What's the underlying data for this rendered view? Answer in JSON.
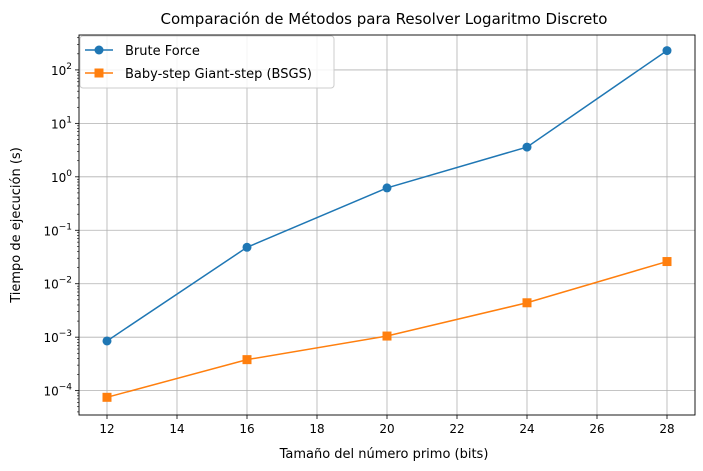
{
  "chart_data": {
    "type": "line",
    "title": "Comparación de Métodos para Resolver Logaritmo Discreto",
    "xlabel": "Tamaño del número primo (bits)",
    "ylabel": "Tiempo de ejecución (s)",
    "yscale": "log",
    "grid": true,
    "legend_position": "top-left",
    "x": [
      12,
      16,
      20,
      24,
      28
    ],
    "xlim": [
      11.2,
      28.8
    ],
    "ylim": [
      3.5e-05,
      450
    ],
    "xticks": [
      12,
      14,
      16,
      18,
      20,
      22,
      24,
      26,
      28
    ],
    "yticks": [
      {
        "exp": -4,
        "value": 0.0001
      },
      {
        "exp": -3,
        "value": 0.001
      },
      {
        "exp": -2,
        "value": 0.01
      },
      {
        "exp": -1,
        "value": 0.1
      },
      {
        "exp": 0,
        "value": 1
      },
      {
        "exp": 1,
        "value": 10
      },
      {
        "exp": 2,
        "value": 100
      }
    ],
    "series": [
      {
        "name": "Brute Force",
        "color": "#1f77b4",
        "marker": "circle",
        "values": [
          0.00085,
          0.048,
          0.62,
          3.6,
          230
        ]
      },
      {
        "name": "Baby-step Giant-step (BSGS)",
        "color": "#ff7f0e",
        "marker": "square",
        "values": [
          7.5e-05,
          0.00038,
          0.00105,
          0.0044,
          0.026
        ]
      }
    ]
  }
}
